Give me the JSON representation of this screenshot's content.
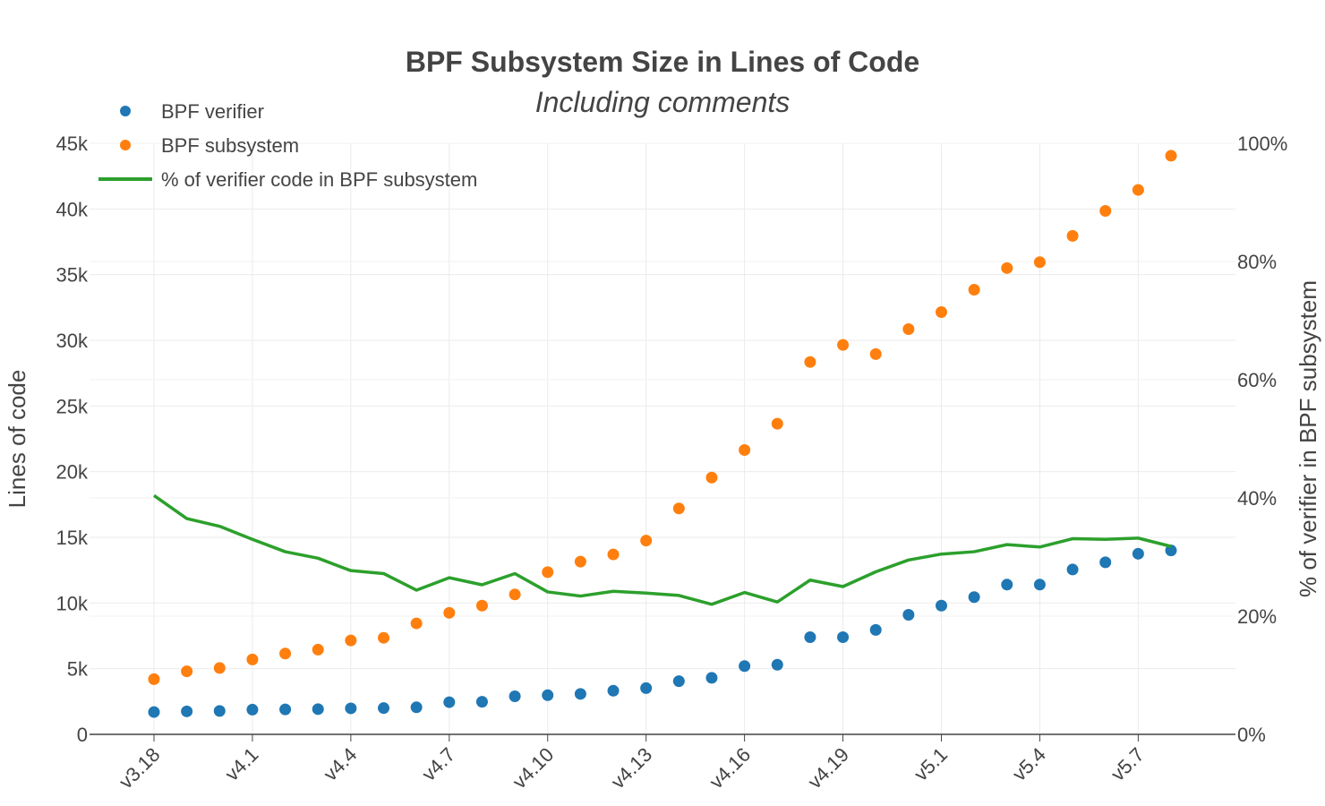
{
  "chart_data": {
    "type": "scatter",
    "title": "BPF Subsystem Size in Lines of Code",
    "subtitle": "Including comments",
    "xlabel": "",
    "ylabel": "Lines of code",
    "y2label": "% of verifier in BPF subsystem",
    "x": [
      "v3.18",
      "v3.19",
      "v4.0",
      "v4.1",
      "v4.2",
      "v4.3",
      "v4.4",
      "v4.5",
      "v4.6",
      "v4.7",
      "v4.8",
      "v4.9",
      "v4.10",
      "v4.11",
      "v4.12",
      "v4.13",
      "v4.14",
      "v4.15",
      "v4.16",
      "v4.17",
      "v4.18",
      "v4.19",
      "v4.20",
      "v5.0",
      "v5.1",
      "v5.2",
      "v5.3",
      "v5.4",
      "v5.5",
      "v5.6",
      "v5.7",
      "v5.8"
    ],
    "x_tick_labels": [
      "v3.18",
      "v4.1",
      "v4.4",
      "v4.7",
      "v4.10",
      "v4.13",
      "v4.16",
      "v4.19",
      "v5.1",
      "v5.4",
      "v5.7"
    ],
    "ylim": [
      0,
      45000
    ],
    "y_tick_labels": [
      "0",
      "5k",
      "10k",
      "15k",
      "20k",
      "25k",
      "30k",
      "35k",
      "40k",
      "45k"
    ],
    "y2lim": [
      0,
      100
    ],
    "y2_tick_labels": [
      "0%",
      "20%",
      "40%",
      "60%",
      "80%",
      "100%"
    ],
    "grid": true,
    "legend_position": "top-left",
    "series": [
      {
        "name": "BPF verifier",
        "kind": "markers",
        "axis": "left",
        "color": "#1f77b4",
        "values": [
          1700,
          1750,
          1780,
          1880,
          1900,
          1920,
          1980,
          2000,
          2060,
          2450,
          2480,
          2900,
          2980,
          3080,
          3320,
          3520,
          4050,
          4300,
          5200,
          5300,
          7400,
          7400,
          7950,
          9100,
          9800,
          10450,
          11400,
          11400,
          12550,
          13100,
          13750,
          14000
        ]
      },
      {
        "name": "BPF subsystem",
        "kind": "markers",
        "axis": "left",
        "color": "#ff7f0e",
        "values": [
          4200,
          4800,
          5050,
          5700,
          6150,
          6450,
          7150,
          7350,
          8450,
          9250,
          9800,
          10650,
          12350,
          13150,
          13700,
          14750,
          17200,
          19550,
          21650,
          23650,
          28350,
          29650,
          28950,
          30850,
          32150,
          33850,
          35500,
          35950,
          37950,
          39850,
          41450,
          44050
        ]
      },
      {
        "name": "% of verifier code in BPF subsystem",
        "kind": "line",
        "axis": "right",
        "color": "#2ca02c",
        "values": [
          40.4,
          36.5,
          35.2,
          33.0,
          30.9,
          29.8,
          27.7,
          27.2,
          24.4,
          26.5,
          25.3,
          27.2,
          24.1,
          23.4,
          24.2,
          23.9,
          23.5,
          22.0,
          24.0,
          22.4,
          26.1,
          25.0,
          27.5,
          29.5,
          30.5,
          30.9,
          32.1,
          31.7,
          33.1,
          33.0,
          33.2,
          31.8
        ]
      }
    ]
  }
}
